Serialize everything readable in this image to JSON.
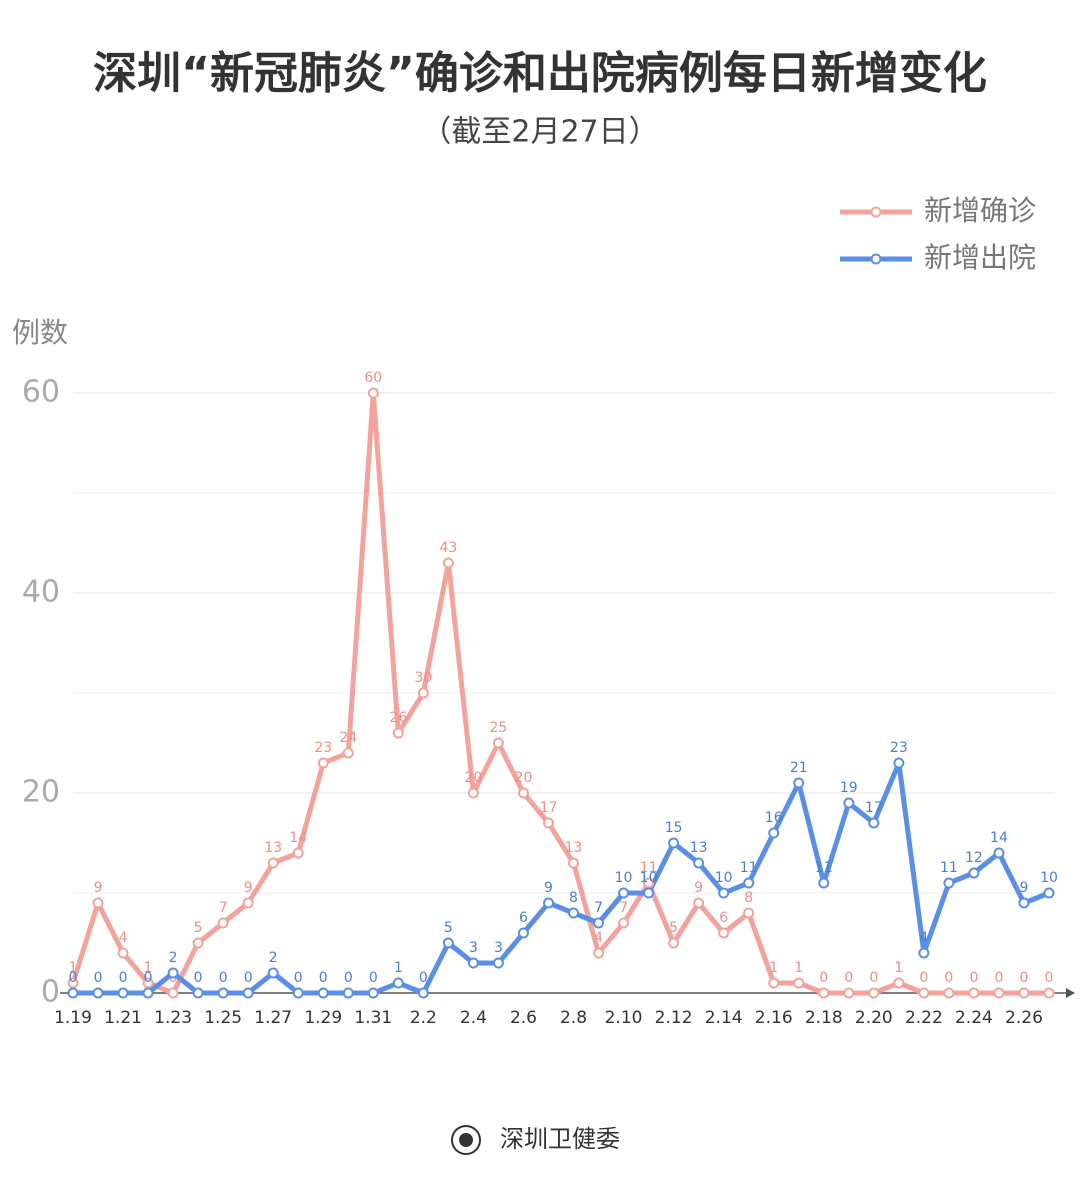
{
  "chart_data": {
    "type": "line",
    "title": "深圳“新冠肺炎”确诊和出院病例每日新增变化",
    "subtitle": "（截至2月27日）",
    "y_label": "例数",
    "source": "深圳卫健委",
    "categories": [
      "1.19",
      null,
      "1.21",
      null,
      "1.23",
      null,
      "1.25",
      null,
      "1.27",
      null,
      "1.29",
      null,
      "1.31",
      null,
      "2.2",
      null,
      "2.4",
      null,
      "2.6",
      null,
      "2.8",
      null,
      "2.10",
      null,
      "2.12",
      null,
      "2.14",
      null,
      "2.16",
      null,
      "2.18",
      null,
      "2.20",
      null,
      "2.22",
      null,
      "2.24",
      null,
      "2.26",
      null
    ],
    "series": [
      {
        "name": "新增确诊",
        "color": "#f4a29c",
        "label_color": "#ee8e87",
        "values": [
          1,
          9,
          4,
          1,
          0,
          5,
          7,
          9,
          13,
          14,
          23,
          24,
          60,
          26,
          30,
          43,
          20,
          25,
          20,
          17,
          13,
          4,
          7,
          11,
          5,
          9,
          6,
          8,
          1,
          1,
          0,
          0,
          0,
          1,
          0,
          0,
          0,
          0,
          0,
          0
        ]
      },
      {
        "name": "新增出院",
        "color": "#5b8fe6",
        "label_color": "#4a7fd6",
        "values": [
          0,
          0,
          0,
          0,
          2,
          0,
          0,
          0,
          2,
          0,
          0,
          0,
          0,
          1,
          0,
          5,
          3,
          3,
          6,
          9,
          8,
          7,
          10,
          10,
          15,
          13,
          10,
          11,
          16,
          21,
          11,
          19,
          17,
          23,
          4,
          11,
          12,
          14,
          9,
          10
        ]
      }
    ],
    "ylim": [
      0,
      60
    ],
    "yticks": [
      0,
      20,
      40,
      60
    ],
    "minor_yticks": [
      10,
      30,
      50
    ],
    "grid": true,
    "legend": "top-right",
    "data_labels": true
  }
}
